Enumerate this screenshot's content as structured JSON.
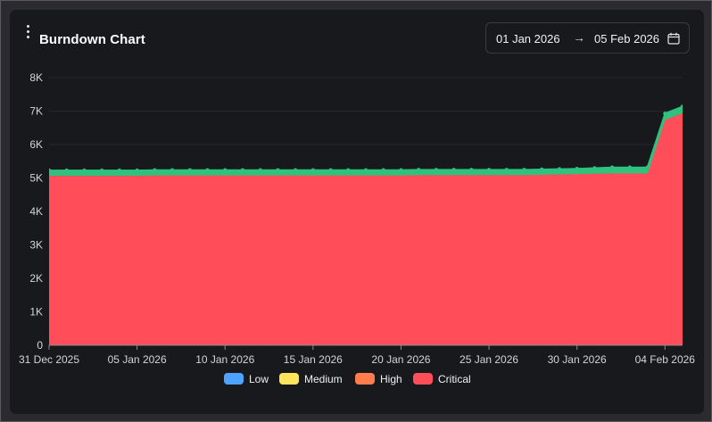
{
  "header": {
    "title": "Burndown Chart",
    "menu_icon": "kebab-menu-icon"
  },
  "date_range": {
    "start": "01 Jan 2026",
    "arrow": "→",
    "end": "05 Feb 2026",
    "icon": "calendar-icon"
  },
  "legend": [
    {
      "label": "Low",
      "color": "#4da3ff"
    },
    {
      "label": "Medium",
      "color": "#ffe45c"
    },
    {
      "label": "High",
      "color": "#ff7d4d"
    },
    {
      "label": "Critical",
      "color": "#ff4d5a"
    }
  ],
  "chart_data": {
    "type": "area",
    "stacked": true,
    "title": "Burndown Chart",
    "x_ticks": [
      "31 Dec 2025",
      "05 Jan 2026",
      "10 Jan 2026",
      "15 Jan 2026",
      "20 Jan 2026",
      "25 Jan 2026",
      "30 Jan 2026",
      "04 Feb 2026"
    ],
    "y_ticks": [
      "0",
      "1K",
      "2K",
      "3K",
      "4K",
      "5K",
      "6K",
      "7K",
      "8K"
    ],
    "ylim": [
      0,
      8000
    ],
    "x_domain": [
      "31 Dec 2025",
      "05 Feb 2026"
    ],
    "grid": true,
    "legend_position": "bottom",
    "x": [
      "31 Dec 2025",
      "01 Jan 2026",
      "02 Jan 2026",
      "03 Jan 2026",
      "04 Jan 2026",
      "05 Jan 2026",
      "06 Jan 2026",
      "07 Jan 2026",
      "08 Jan 2026",
      "09 Jan 2026",
      "10 Jan 2026",
      "11 Jan 2026",
      "12 Jan 2026",
      "13 Jan 2026",
      "14 Jan 2026",
      "15 Jan 2026",
      "16 Jan 2026",
      "17 Jan 2026",
      "18 Jan 2026",
      "19 Jan 2026",
      "20 Jan 2026",
      "21 Jan 2026",
      "22 Jan 2026",
      "23 Jan 2026",
      "24 Jan 2026",
      "25 Jan 2026",
      "26 Jan 2026",
      "27 Jan 2026",
      "28 Jan 2026",
      "29 Jan 2026",
      "30 Jan 2026",
      "31 Jan 2026",
      "01 Feb 2026",
      "02 Feb 2026",
      "03 Feb 2026",
      "04 Feb 2026",
      "05 Feb 2026"
    ],
    "series": [
      {
        "name": "Low",
        "color": "#4da3ff",
        "values": [
          0,
          0,
          0,
          0,
          0,
          0,
          0,
          0,
          0,
          0,
          0,
          0,
          0,
          0,
          0,
          0,
          0,
          0,
          0,
          0,
          0,
          0,
          0,
          0,
          0,
          0,
          0,
          0,
          0,
          0,
          0,
          0,
          0,
          0,
          0,
          0,
          0
        ]
      },
      {
        "name": "Medium",
        "color": "#ffe45c",
        "values": [
          0,
          0,
          0,
          0,
          0,
          0,
          0,
          0,
          0,
          0,
          0,
          0,
          0,
          0,
          0,
          0,
          0,
          0,
          0,
          0,
          0,
          0,
          0,
          0,
          0,
          0,
          0,
          0,
          0,
          0,
          0,
          0,
          0,
          0,
          0,
          0,
          0
        ]
      },
      {
        "name": "High",
        "color": "#ff7d4d",
        "values": [
          0,
          0,
          0,
          0,
          0,
          0,
          0,
          0,
          0,
          0,
          0,
          0,
          0,
          0,
          0,
          0,
          0,
          0,
          0,
          0,
          0,
          0,
          0,
          0,
          0,
          0,
          0,
          0,
          0,
          0,
          0,
          0,
          0,
          0,
          0,
          0,
          0
        ]
      },
      {
        "name": "Critical",
        "color": "#ff4d5a",
        "values": [
          5080,
          5080,
          5080,
          5080,
          5080,
          5080,
          5090,
          5090,
          5090,
          5090,
          5090,
          5090,
          5090,
          5090,
          5090,
          5090,
          5090,
          5090,
          5090,
          5090,
          5090,
          5100,
          5100,
          5100,
          5100,
          5100,
          5100,
          5100,
          5110,
          5120,
          5130,
          5140,
          5150,
          5150,
          5150,
          6750,
          6950
        ]
      },
      {
        "name": "",
        "color": "#2ec27e",
        "values": [
          150,
          150,
          150,
          150,
          150,
          150,
          150,
          150,
          150,
          150,
          150,
          150,
          150,
          150,
          150,
          150,
          150,
          150,
          150,
          150,
          150,
          150,
          150,
          150,
          150,
          150,
          150,
          150,
          150,
          150,
          150,
          160,
          170,
          170,
          170,
          180,
          190
        ]
      }
    ]
  }
}
